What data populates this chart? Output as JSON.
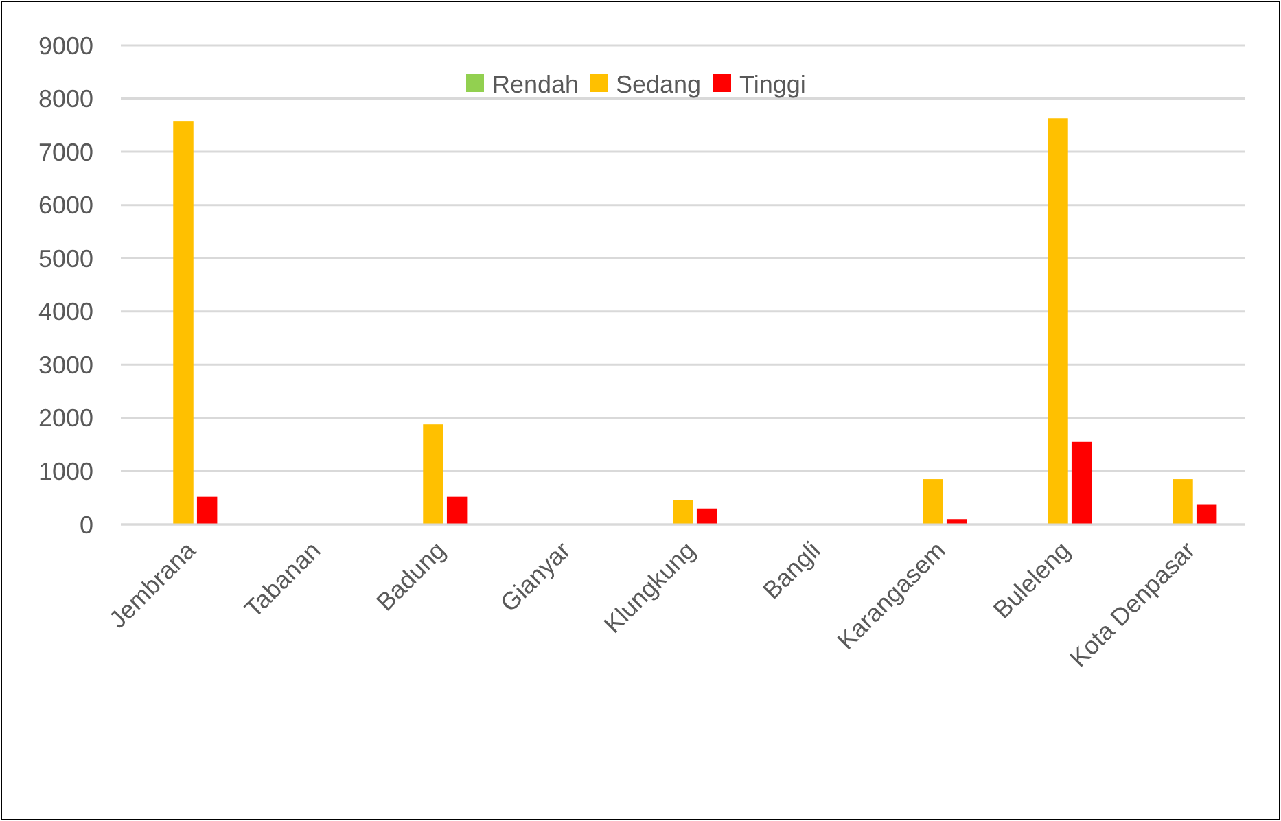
{
  "chart_data": {
    "type": "bar",
    "categories": [
      "Jembrana",
      "Tabanan",
      "Badung",
      "Gianyar",
      "Klungkung",
      "Bangli",
      "Karangasem",
      "Buleleng",
      "Kota Denpasar"
    ],
    "series": [
      {
        "name": "Rendah",
        "color": "#92d050",
        "values": [
          0,
          0,
          0,
          0,
          0,
          0,
          0,
          0,
          0
        ]
      },
      {
        "name": "Sedang",
        "color": "#ffc000",
        "values": [
          7580,
          0,
          1880,
          0,
          455,
          0,
          850,
          7630,
          850
        ]
      },
      {
        "name": "Tinggi",
        "color": "#ff0000",
        "values": [
          520,
          0,
          520,
          0,
          300,
          0,
          100,
          1550,
          380
        ]
      }
    ],
    "ylim": [
      0,
      9000
    ],
    "yticks": [
      0,
      1000,
      2000,
      3000,
      4000,
      5000,
      6000,
      7000,
      8000,
      9000
    ],
    "grid": "y",
    "legend": "top"
  }
}
